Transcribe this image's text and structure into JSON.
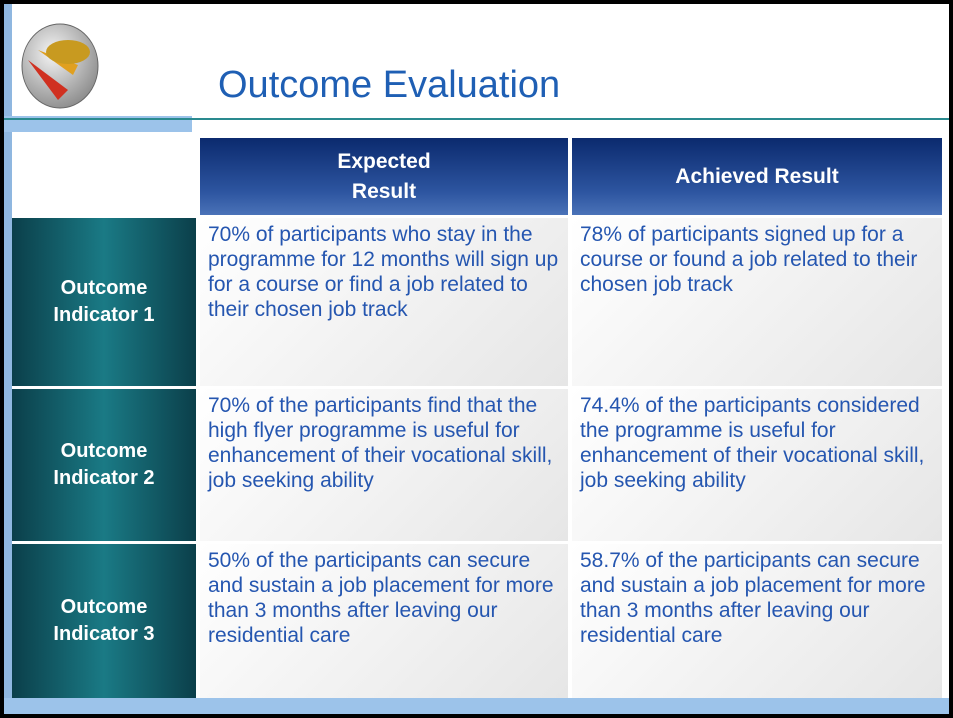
{
  "title": "Outcome Evaluation",
  "table": {
    "header": [
      "Expected Result",
      "Achieved Result"
    ],
    "rows": [
      {
        "label": "Outcome Indicator 1",
        "expected": "70% of participants who stay in the programme for 12 months will sign up for a course or find a job related to their chosen job track",
        "achieved": "78% of participants signed up for a course or found a job related to their chosen job track"
      },
      {
        "label": "Outcome Indicator 2",
        "expected": "70% of the participants find that the high flyer programme is useful for enhancement of their vocational skill, job seeking ability",
        "achieved": "74.4% of the participants considered the programme is useful for enhancement of their vocational skill, job seeking ability"
      },
      {
        "label": "Outcome Indicator 3",
        "expected": "50% of the participants can secure and sustain a job placement for more than 3 months after leaving our residential care",
        "achieved": "58.7% of the participants can secure and sustain a job placement for more than 3 months after leaving our residential care"
      }
    ]
  }
}
